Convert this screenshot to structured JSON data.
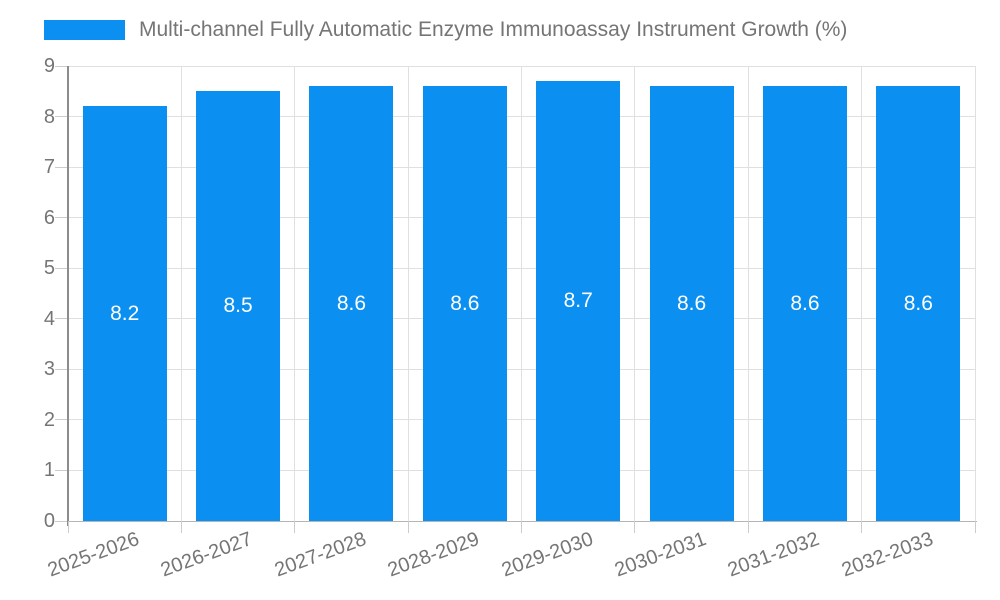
{
  "chart_data": {
    "type": "bar",
    "title": "Multi-channel Fully Automatic Enzyme Immunoassay Instrument Growth (%)",
    "categories": [
      "2025-2026",
      "2026-2027",
      "2027-2028",
      "2028-2029",
      "2029-2030",
      "2030-2031",
      "2031-2032",
      "2032-2033"
    ],
    "values": [
      8.2,
      8.5,
      8.6,
      8.6,
      8.7,
      8.6,
      8.6,
      8.6
    ],
    "value_labels": [
      "8.2",
      "8.5",
      "8.6",
      "8.6",
      "8.7",
      "8.6",
      "8.6",
      "8.6"
    ],
    "xlabel": "",
    "ylabel": "",
    "ylim": [
      0,
      9
    ],
    "yticks": [
      0,
      1,
      2,
      3,
      4,
      5,
      6,
      7,
      8,
      9
    ],
    "grid": true,
    "legend_position": "top",
    "x_label_rotation_deg": -20,
    "colors": {
      "bar": "#0B90F2",
      "bar_value_text": "#FFFFFF",
      "axis_text": "#757575",
      "legend_text": "#757575",
      "gridline": "#E0E0E0",
      "y_axis_line": "#8C8C8C",
      "x_axis_line": "#B5B5B5",
      "tick": "#CCCCCC",
      "background": "#FFFFFF"
    }
  }
}
